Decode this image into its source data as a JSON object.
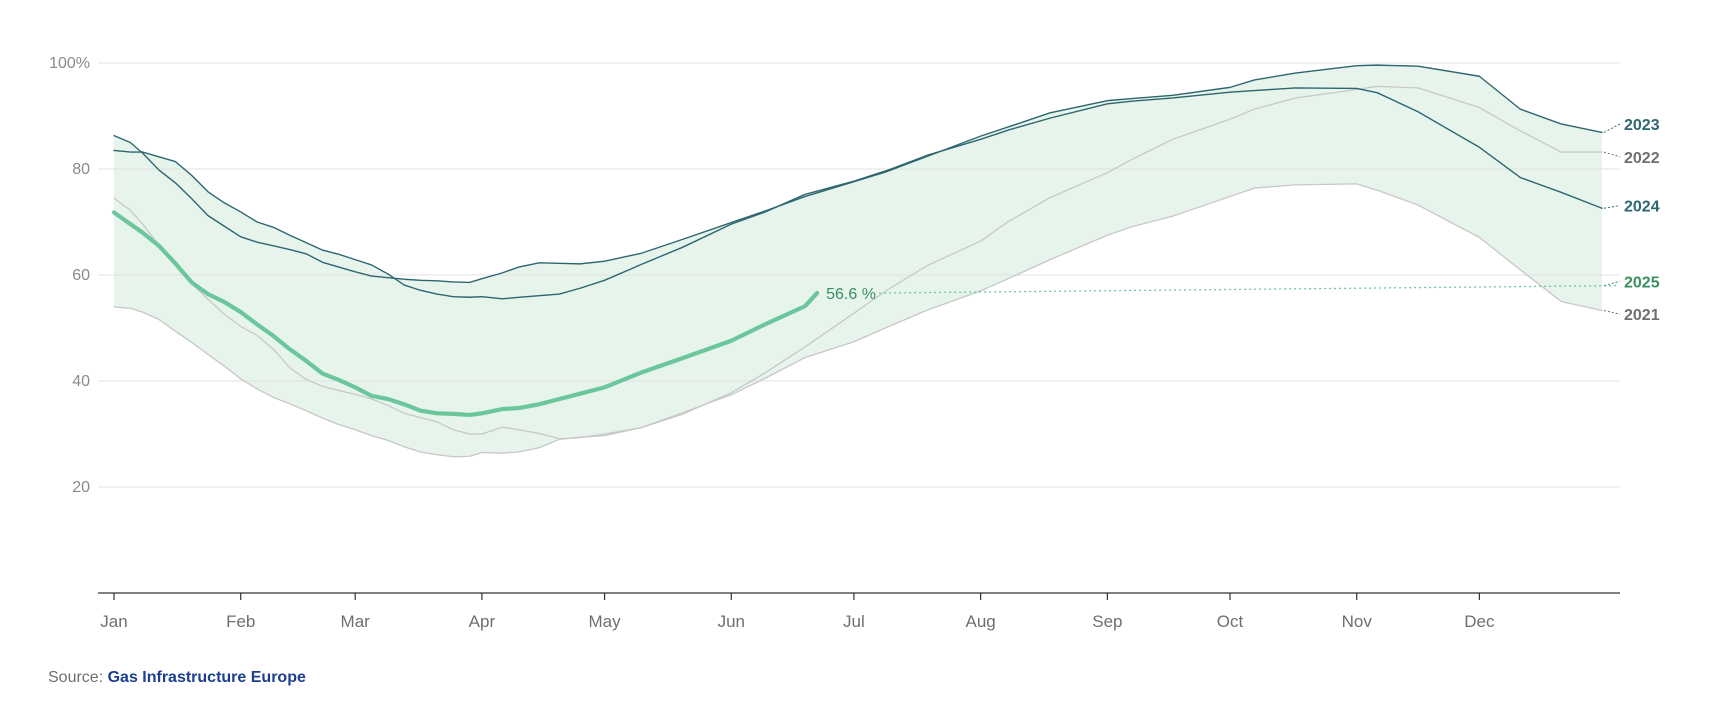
{
  "source": {
    "prefix": "Source:",
    "link_text": "Gas Infrastructure Europe"
  },
  "colors": {
    "band_fill": "#e6f4ec",
    "band_light_fill": "#f2f8f5",
    "y2021": "#c8c8c8",
    "y2022": "#c8c8c8",
    "y2023": "#2e6670",
    "y2024": "#2e6670",
    "y2025": "#6cc69c",
    "label_2021": "#6f6f6f",
    "label_2022": "#6f6f6f",
    "label_2023": "#2e6670",
    "label_2024": "#2e6670",
    "label_2025": "#3a8f5f",
    "annotation": "#3a8f5f"
  },
  "chart_data": {
    "type": "line",
    "title": "",
    "xlabel": "",
    "ylabel": "",
    "xlim": [
      1,
      365
    ],
    "ylim": [
      0,
      100
    ],
    "y_ticks": [
      {
        "value": 100,
        "label": "100%"
      },
      {
        "value": 80,
        "label": "80"
      },
      {
        "value": 60,
        "label": "60"
      },
      {
        "value": 40,
        "label": "40"
      },
      {
        "value": 20,
        "label": "20"
      }
    ],
    "x_ticks": [
      {
        "day": 1,
        "label": "Jan"
      },
      {
        "day": 32,
        "label": "Feb"
      },
      {
        "day": 60,
        "label": "Mar"
      },
      {
        "day": 91,
        "label": "Apr"
      },
      {
        "day": 121,
        "label": "May"
      },
      {
        "day": 152,
        "label": "Jun"
      },
      {
        "day": 182,
        "label": "Jul"
      },
      {
        "day": 213,
        "label": "Aug"
      },
      {
        "day": 244,
        "label": "Sep"
      },
      {
        "day": 274,
        "label": "Oct"
      },
      {
        "day": 305,
        "label": "Nov"
      },
      {
        "day": 335,
        "label": "Dec"
      }
    ],
    "series": [
      {
        "name": "2021",
        "key": "y2021",
        "x": [
          1,
          5,
          8,
          12,
          16,
          20,
          24,
          28,
          32,
          36,
          40,
          44,
          48,
          52,
          56,
          60,
          64,
          68,
          72,
          76,
          80,
          84,
          88,
          91,
          96,
          100,
          105,
          110,
          115,
          121,
          130,
          140,
          152,
          160,
          170,
          182,
          190,
          200,
          213,
          220,
          230,
          244,
          250,
          260,
          274,
          280,
          290,
          305,
          310,
          320,
          335,
          345,
          355,
          365
        ],
        "y": [
          54,
          53.7,
          53,
          51.6,
          49.4,
          47.3,
          45,
          42.8,
          40.4,
          38.5,
          36.9,
          35.7,
          34.4,
          33,
          31.8,
          30.8,
          29.7,
          28.8,
          27.6,
          26.6,
          26.1,
          25.7,
          25.8,
          26.5,
          26.4,
          26.6,
          27.4,
          29,
          29.4,
          29.7,
          31.2,
          34,
          37.4,
          40.4,
          44.4,
          47.4,
          50.1,
          53.4,
          57,
          59.4,
          62.9,
          67.5,
          69.1,
          71.1,
          74.8,
          76.4,
          77,
          77.2,
          76,
          73.2,
          67.1,
          61,
          55,
          53.3
        ]
      },
      {
        "name": "2022",
        "key": "y2022",
        "x": [
          1,
          5,
          8,
          12,
          16,
          20,
          24,
          28,
          32,
          36,
          40,
          44,
          48,
          52,
          56,
          60,
          64,
          68,
          72,
          76,
          80,
          84,
          88,
          91,
          96,
          100,
          105,
          110,
          115,
          121,
          130,
          140,
          152,
          160,
          170,
          182,
          190,
          200,
          213,
          220,
          230,
          244,
          250,
          260,
          274,
          280,
          290,
          305,
          310,
          320,
          335,
          345,
          355,
          365
        ],
        "y": [
          74.5,
          72.2,
          69.6,
          65.6,
          61.8,
          58.4,
          55.4,
          52.6,
          50.3,
          48.6,
          46,
          42.5,
          40.3,
          39,
          38.2,
          37.5,
          36.6,
          35.4,
          33.9,
          33.1,
          32.3,
          30.8,
          30,
          30,
          31.3,
          30.8,
          30.1,
          29.1,
          29.3,
          30,
          31.2,
          33.7,
          37.8,
          41.4,
          46.4,
          52.8,
          57.1,
          61.8,
          66.4,
          70.2,
          74.6,
          79.3,
          81.8,
          85.6,
          89.4,
          91.3,
          93.4,
          95,
          95.6,
          95.3,
          91.6,
          87.2,
          83.2,
          83.2
        ]
      },
      {
        "name": "2023",
        "key": "y2023",
        "x": [
          1,
          5,
          8,
          12,
          16,
          20,
          24,
          28,
          32,
          36,
          40,
          44,
          48,
          52,
          56,
          60,
          64,
          68,
          72,
          76,
          80,
          84,
          88,
          91,
          96,
          100,
          105,
          110,
          115,
          121,
          130,
          140,
          152,
          160,
          170,
          182,
          190,
          200,
          213,
          220,
          230,
          244,
          250,
          260,
          274,
          280,
          290,
          305,
          310,
          320,
          335,
          345,
          355,
          365
        ],
        "y": [
          86.3,
          85,
          83,
          79.8,
          77.4,
          74.4,
          71.2,
          69.2,
          67.2,
          66.2,
          65.5,
          64.8,
          64,
          62.4,
          61.5,
          60.6,
          59.8,
          59.5,
          59.2,
          59,
          58.9,
          58.7,
          58.6,
          59.3,
          60.4,
          61.5,
          62.3,
          62.2,
          62.1,
          62.6,
          64.1,
          66.7,
          69.9,
          72,
          74.8,
          77.6,
          79.5,
          82.4,
          86.2,
          88,
          90.6,
          92.9,
          93.3,
          93.9,
          95.4,
          96.8,
          98.1,
          99.5,
          99.6,
          99.4,
          97.5,
          91.3,
          88.5,
          86.9
        ]
      },
      {
        "name": "2024",
        "key": "y2024",
        "x": [
          1,
          5,
          8,
          12,
          16,
          20,
          24,
          28,
          32,
          36,
          40,
          44,
          48,
          52,
          56,
          60,
          64,
          68,
          72,
          76,
          80,
          84,
          88,
          91,
          96,
          100,
          105,
          110,
          115,
          121,
          130,
          140,
          152,
          160,
          170,
          182,
          190,
          200,
          213,
          220,
          230,
          244,
          250,
          260,
          274,
          280,
          290,
          305,
          310,
          320,
          335,
          345,
          355,
          365
        ],
        "y": [
          83.5,
          83.2,
          83.2,
          82.3,
          81.4,
          78.8,
          75.7,
          73.6,
          71.9,
          70,
          69,
          67.5,
          66.1,
          64.7,
          63.9,
          62.9,
          61.9,
          60.2,
          58.1,
          57.1,
          56.4,
          55.9,
          55.8,
          55.9,
          55.5,
          55.8,
          56.1,
          56.4,
          57.5,
          59,
          62,
          65.2,
          69.6,
          71.8,
          75.2,
          77.7,
          79.7,
          82.6,
          85.6,
          87.4,
          89.6,
          92.3,
          92.8,
          93.4,
          94.5,
          94.8,
          95.3,
          95.2,
          94.4,
          90.8,
          84.1,
          78.4,
          75.6,
          72.6
        ]
      },
      {
        "name": "2025",
        "key": "y2025",
        "x": [
          1,
          5,
          8,
          12,
          16,
          20,
          24,
          28,
          32,
          36,
          40,
          44,
          48,
          52,
          56,
          60,
          64,
          68,
          72,
          76,
          80,
          84,
          88,
          91,
          96,
          100,
          105,
          110,
          115,
          121,
          130,
          140,
          152,
          160,
          170,
          173
        ],
        "y": [
          71.8,
          69.6,
          68,
          65.5,
          62.2,
          58.6,
          56.4,
          54.9,
          53,
          50.7,
          48.5,
          46,
          43.8,
          41.4,
          40.2,
          38.8,
          37.2,
          36.6,
          35.6,
          34.4,
          33.9,
          33.8,
          33.6,
          33.9,
          34.7,
          34.9,
          35.6,
          36.6,
          37.6,
          38.8,
          41.6,
          44.3,
          47.6,
          50.6,
          54.1,
          56.6
        ]
      }
    ],
    "projection": {
      "series": "2025",
      "from_day": 173,
      "from_value": 56.6,
      "to_day": 365,
      "to_value": 58
    },
    "annotation": {
      "text": "56.6 %",
      "day": 173,
      "value": 56.6
    },
    "end_labels": [
      {
        "name": "2023",
        "value": 86.9,
        "label_value": 88.5,
        "color_key": "label_2023"
      },
      {
        "name": "2022",
        "value": 83.2,
        "label_value": 82.3,
        "color_key": "label_2022"
      },
      {
        "name": "2024",
        "value": 72.6,
        "label_value": 73.1,
        "color_key": "label_2024"
      },
      {
        "name": "2025",
        "value": 58,
        "label_value": 58.8,
        "color_key": "label_2025"
      },
      {
        "name": "2021",
        "value": 53.3,
        "label_value": 52.6,
        "color_key": "label_2021"
      }
    ],
    "grid": true,
    "legend": "none"
  }
}
